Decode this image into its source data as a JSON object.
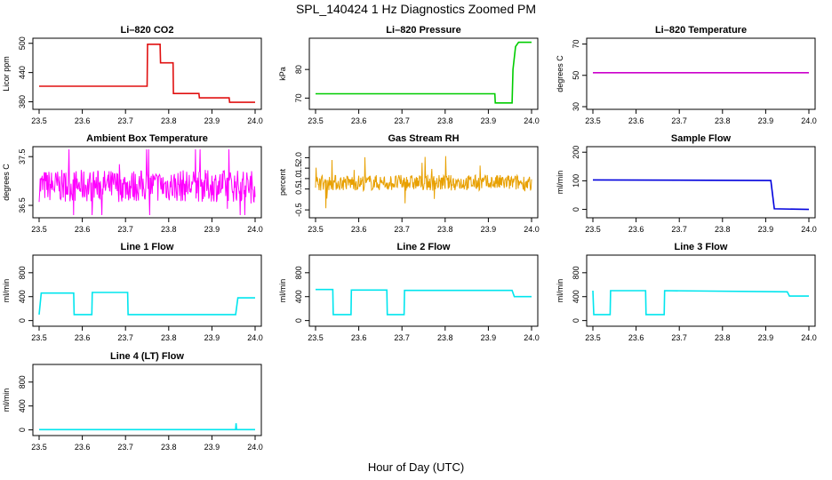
{
  "title": "SPL_140424  1 Hz Diagnostics Zoomed PM",
  "xlabel": "Hour of Day (UTC)",
  "chart_data": [
    {
      "type": "line",
      "title": "Li–820 CO2",
      "ylabel": "Licor ppm",
      "xlim": [
        23.5,
        24.0
      ],
      "ylim": [
        370,
        505
      ],
      "x_ticks": [
        "23.5",
        "23.6",
        "23.7",
        "23.8",
        "23.9",
        "24.0"
      ],
      "y_ticks": [
        "380",
        "440",
        "500"
      ],
      "series": [
        {
          "color": "#e01010",
          "x": [
            23.5,
            23.75,
            23.751,
            23.78,
            23.781,
            23.81,
            23.811,
            23.87,
            23.871,
            23.94,
            23.941,
            24.0
          ],
          "values": [
            412,
            412,
            498,
            498,
            460,
            460,
            397,
            397,
            388,
            388,
            379,
            379
          ]
        }
      ]
    },
    {
      "type": "line",
      "title": "Li–820 Pressure",
      "ylabel": "kPa",
      "xlim": [
        23.5,
        24.0
      ],
      "ylim": [
        67,
        90
      ],
      "x_ticks": [
        "23.5",
        "23.6",
        "23.7",
        "23.8",
        "23.9",
        "24.0"
      ],
      "y_ticks": [
        "70",
        "80"
      ],
      "series": [
        {
          "color": "#00cc00",
          "x": [
            23.5,
            23.915,
            23.916,
            23.955,
            23.957,
            23.963,
            23.97,
            24.0
          ],
          "values": [
            71.5,
            71.5,
            68.3,
            68.3,
            80,
            88,
            89.5,
            89.5
          ]
        }
      ]
    },
    {
      "type": "line",
      "title": "Li–820 Temperature",
      "ylabel": "degrees C",
      "xlim": [
        23.5,
        24.0
      ],
      "ylim": [
        30,
        72
      ],
      "x_ticks": [
        "23.5",
        "23.6",
        "23.7",
        "23.8",
        "23.9",
        "24.0"
      ],
      "y_ticks": [
        "30",
        "50",
        "70"
      ],
      "series": [
        {
          "color": "#cc00cc",
          "x": [
            23.5,
            24.0
          ],
          "values": [
            51.7,
            51.7
          ]
        }
      ]
    },
    {
      "type": "line",
      "title": "Ambient Box Temperature",
      "ylabel": "degrees C",
      "xlim": [
        23.5,
        24.0
      ],
      "ylim": [
        36.3,
        37.65
      ],
      "x_ticks": [
        "23.5",
        "23.6",
        "23.7",
        "23.8",
        "23.9",
        "24.0"
      ],
      "y_ticks": [
        "36.5",
        "37.5"
      ],
      "noise": {
        "center": 36.9,
        "amp": 0.33
      },
      "series": [
        {
          "color": "#ff00ff",
          "x": [],
          "values": []
        }
      ]
    },
    {
      "type": "line",
      "title": "Gas Stream RH",
      "ylabel": "percent",
      "xlim": [
        23.5,
        24.0
      ],
      "ylim": [
        -0.75,
        2.4
      ],
      "x_ticks": [
        "23.5",
        "23.6",
        "23.7",
        "23.8",
        "23.9",
        "24.0"
      ],
      "y_ticks": [
        "-0.5",
        "0.5",
        "1.0",
        "1.5",
        "2.0"
      ],
      "noise": {
        "center": 0.8,
        "amp": 0.38
      },
      "series": [
        {
          "color": "#e8a000",
          "x": [],
          "values": []
        }
      ]
    },
    {
      "type": "line",
      "title": "Sample Flow",
      "ylabel": "ml/min",
      "xlim": [
        23.5,
        24.0
      ],
      "ylim": [
        -20,
        210
      ],
      "x_ticks": [
        "23.5",
        "23.6",
        "23.7",
        "23.8",
        "23.9",
        "24.0"
      ],
      "y_ticks": [
        "0",
        "100",
        "200"
      ],
      "series": [
        {
          "color": "#0000dd",
          "x": [
            23.5,
            23.91,
            23.912,
            23.92,
            24.0
          ],
          "values": [
            103,
            101,
            101,
            2,
            0
          ]
        }
      ]
    },
    {
      "type": "line",
      "title": "Line 1 Flow",
      "ylabel": "ml/min",
      "xlim": [
        23.5,
        24.0
      ],
      "ylim": [
        -50,
        1050
      ],
      "x_ticks": [
        "23.5",
        "23.6",
        "23.7",
        "23.8",
        "23.9",
        "24.0"
      ],
      "y_ticks": [
        "0",
        "400",
        "800"
      ],
      "series": [
        {
          "color": "#00e5ee",
          "x": [
            23.5,
            23.505,
            23.58,
            23.581,
            23.622,
            23.623,
            23.705,
            23.706,
            23.955,
            23.96,
            24.0
          ],
          "values": [
            100,
            460,
            460,
            100,
            100,
            470,
            470,
            100,
            100,
            380,
            380
          ]
        }
      ]
    },
    {
      "type": "line",
      "title": "Line 2 Flow",
      "ylabel": "ml/min",
      "xlim": [
        23.5,
        24.0
      ],
      "ylim": [
        -50,
        1050
      ],
      "x_ticks": [
        "23.5",
        "23.6",
        "23.7",
        "23.8",
        "23.9",
        "24.0"
      ],
      "y_ticks": [
        "0",
        "400",
        "800"
      ],
      "series": [
        {
          "color": "#00e5ee",
          "x": [
            23.5,
            23.54,
            23.541,
            23.582,
            23.583,
            23.665,
            23.666,
            23.705,
            23.706,
            23.955,
            23.96,
            24.0
          ],
          "values": [
            520,
            520,
            100,
            100,
            510,
            510,
            100,
            100,
            505,
            505,
            400,
            400
          ]
        }
      ]
    },
    {
      "type": "line",
      "title": "Line 3 Flow",
      "ylabel": "ml/min",
      "xlim": [
        23.5,
        24.0
      ],
      "ylim": [
        -50,
        1050
      ],
      "x_ticks": [
        "23.5",
        "23.6",
        "23.7",
        "23.8",
        "23.9",
        "24.0"
      ],
      "y_ticks": [
        "0",
        "400",
        "800"
      ],
      "series": [
        {
          "color": "#00e5ee",
          "x": [
            23.5,
            23.502,
            23.54,
            23.541,
            23.622,
            23.623,
            23.665,
            23.666,
            23.95,
            23.955,
            24.0
          ],
          "values": [
            500,
            100,
            100,
            500,
            500,
            100,
            100,
            500,
            480,
            410,
            410
          ]
        }
      ]
    },
    {
      "type": "line",
      "title": "Line 4 (LT) Flow",
      "ylabel": "ml/min",
      "xlim": [
        23.5,
        24.0
      ],
      "ylim": [
        -50,
        1050
      ],
      "x_ticks": [
        "23.5",
        "23.6",
        "23.7",
        "23.8",
        "23.9",
        "24.0"
      ],
      "y_ticks": [
        "0",
        "400",
        "800"
      ],
      "series": [
        {
          "color": "#00e5ee",
          "x": [
            23.5,
            23.955,
            23.956,
            23.957,
            23.958,
            24.0
          ],
          "values": [
            5,
            5,
            110,
            5,
            5,
            5
          ]
        }
      ]
    }
  ]
}
